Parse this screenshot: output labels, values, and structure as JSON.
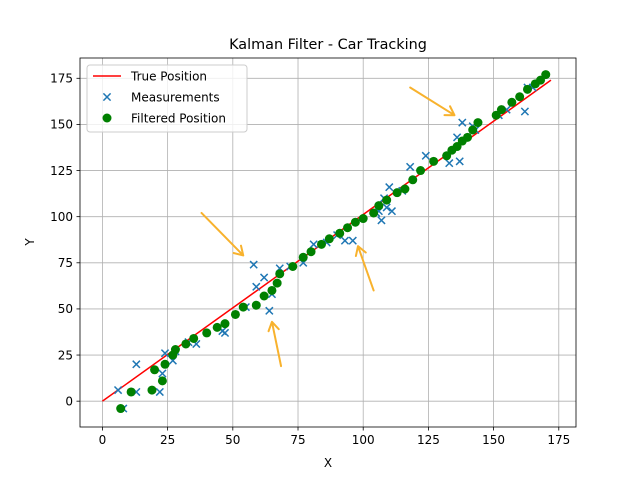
{
  "chart_data": {
    "type": "scatter",
    "title": "Kalman Filter - Car Tracking",
    "xlabel": "X",
    "ylabel": "Y",
    "xlim": [
      -8.6,
      181.6
    ],
    "ylim": [
      -14,
      186
    ],
    "xticks": [
      0,
      25,
      50,
      75,
      100,
      125,
      150,
      175
    ],
    "yticks": [
      0,
      25,
      50,
      75,
      100,
      125,
      150,
      175
    ],
    "grid": true,
    "legend_position": "upper-left",
    "colors": {
      "true_position": "#ff0000",
      "measurements": "#1f77b4",
      "filtered": "#008000",
      "arrows": "#f8b22d",
      "grid": "#b0b0b0"
    },
    "series": [
      {
        "name": "True Position",
        "kind": "line",
        "x": [
          0,
          172
        ],
        "y": [
          0,
          174
        ]
      },
      {
        "name": "Measurements",
        "kind": "x-marker",
        "points": [
          [
            6,
            6
          ],
          [
            8,
            -4
          ],
          [
            13,
            5
          ],
          [
            13,
            20
          ],
          [
            22,
            5
          ],
          [
            23,
            15
          ],
          [
            24,
            26
          ],
          [
            27,
            22
          ],
          [
            28,
            27
          ],
          [
            33,
            32
          ],
          [
            36,
            31
          ],
          [
            46,
            38
          ],
          [
            47,
            37
          ],
          [
            55,
            51
          ],
          [
            58,
            74
          ],
          [
            59,
            62
          ],
          [
            62,
            67
          ],
          [
            64,
            49
          ],
          [
            65,
            58
          ],
          [
            68,
            72
          ],
          [
            72,
            73
          ],
          [
            77,
            75
          ],
          [
            81,
            85
          ],
          [
            86,
            86
          ],
          [
            90,
            90
          ],
          [
            93,
            87
          ],
          [
            96,
            87
          ],
          [
            105,
            102
          ],
          [
            106,
            103
          ],
          [
            107,
            98
          ],
          [
            108,
            110
          ],
          [
            109,
            105
          ],
          [
            110,
            116
          ],
          [
            111,
            103
          ],
          [
            115,
            114
          ],
          [
            118,
            127
          ],
          [
            124,
            133
          ],
          [
            133,
            129
          ],
          [
            136,
            143
          ],
          [
            137,
            130
          ],
          [
            138,
            151
          ],
          [
            142,
            149
          ],
          [
            143,
            147
          ],
          [
            152,
            155
          ],
          [
            155,
            158
          ],
          [
            162,
            157
          ],
          [
            163,
            170
          ],
          [
            165,
            170
          ]
        ]
      },
      {
        "name": "Filtered Position",
        "kind": "dot",
        "points": [
          [
            7,
            -4
          ],
          [
            11,
            5
          ],
          [
            19,
            6
          ],
          [
            20,
            17
          ],
          [
            23,
            11
          ],
          [
            24,
            20
          ],
          [
            27,
            25
          ],
          [
            28,
            28
          ],
          [
            32,
            31
          ],
          [
            35,
            34
          ],
          [
            40,
            37
          ],
          [
            44,
            40
          ],
          [
            47,
            42
          ],
          [
            51,
            47
          ],
          [
            54,
            51
          ],
          [
            59,
            52
          ],
          [
            62,
            57
          ],
          [
            65,
            60
          ],
          [
            67,
            64
          ],
          [
            68,
            69
          ],
          [
            73,
            73
          ],
          [
            77,
            78
          ],
          [
            80,
            81
          ],
          [
            84,
            85
          ],
          [
            87,
            88
          ],
          [
            91,
            91
          ],
          [
            94,
            94
          ],
          [
            97,
            97
          ],
          [
            100,
            99
          ],
          [
            104,
            102
          ],
          [
            106,
            106
          ],
          [
            109,
            109
          ],
          [
            113,
            113
          ],
          [
            116,
            115
          ],
          [
            119,
            120
          ],
          [
            122,
            125
          ],
          [
            127,
            130
          ],
          [
            132,
            133
          ],
          [
            134,
            136
          ],
          [
            136,
            138
          ],
          [
            138,
            141
          ],
          [
            140,
            143
          ],
          [
            142,
            147
          ],
          [
            144,
            151
          ],
          [
            151,
            155
          ],
          [
            153,
            158
          ],
          [
            157,
            162
          ],
          [
            160,
            165
          ],
          [
            163,
            169
          ],
          [
            166,
            172
          ],
          [
            168,
            174
          ],
          [
            170,
            177
          ]
        ]
      }
    ],
    "annotations": [
      {
        "type": "arrow",
        "from": [
          38,
          102
        ],
        "to": [
          54,
          79
        ]
      },
      {
        "type": "arrow",
        "from": [
          68.5,
          19
        ],
        "to": [
          65,
          43
        ]
      },
      {
        "type": "arrow",
        "from": [
          104,
          60
        ],
        "to": [
          98,
          84
        ]
      },
      {
        "type": "arrow",
        "from": [
          118,
          170
        ],
        "to": [
          135,
          155
        ]
      }
    ]
  }
}
